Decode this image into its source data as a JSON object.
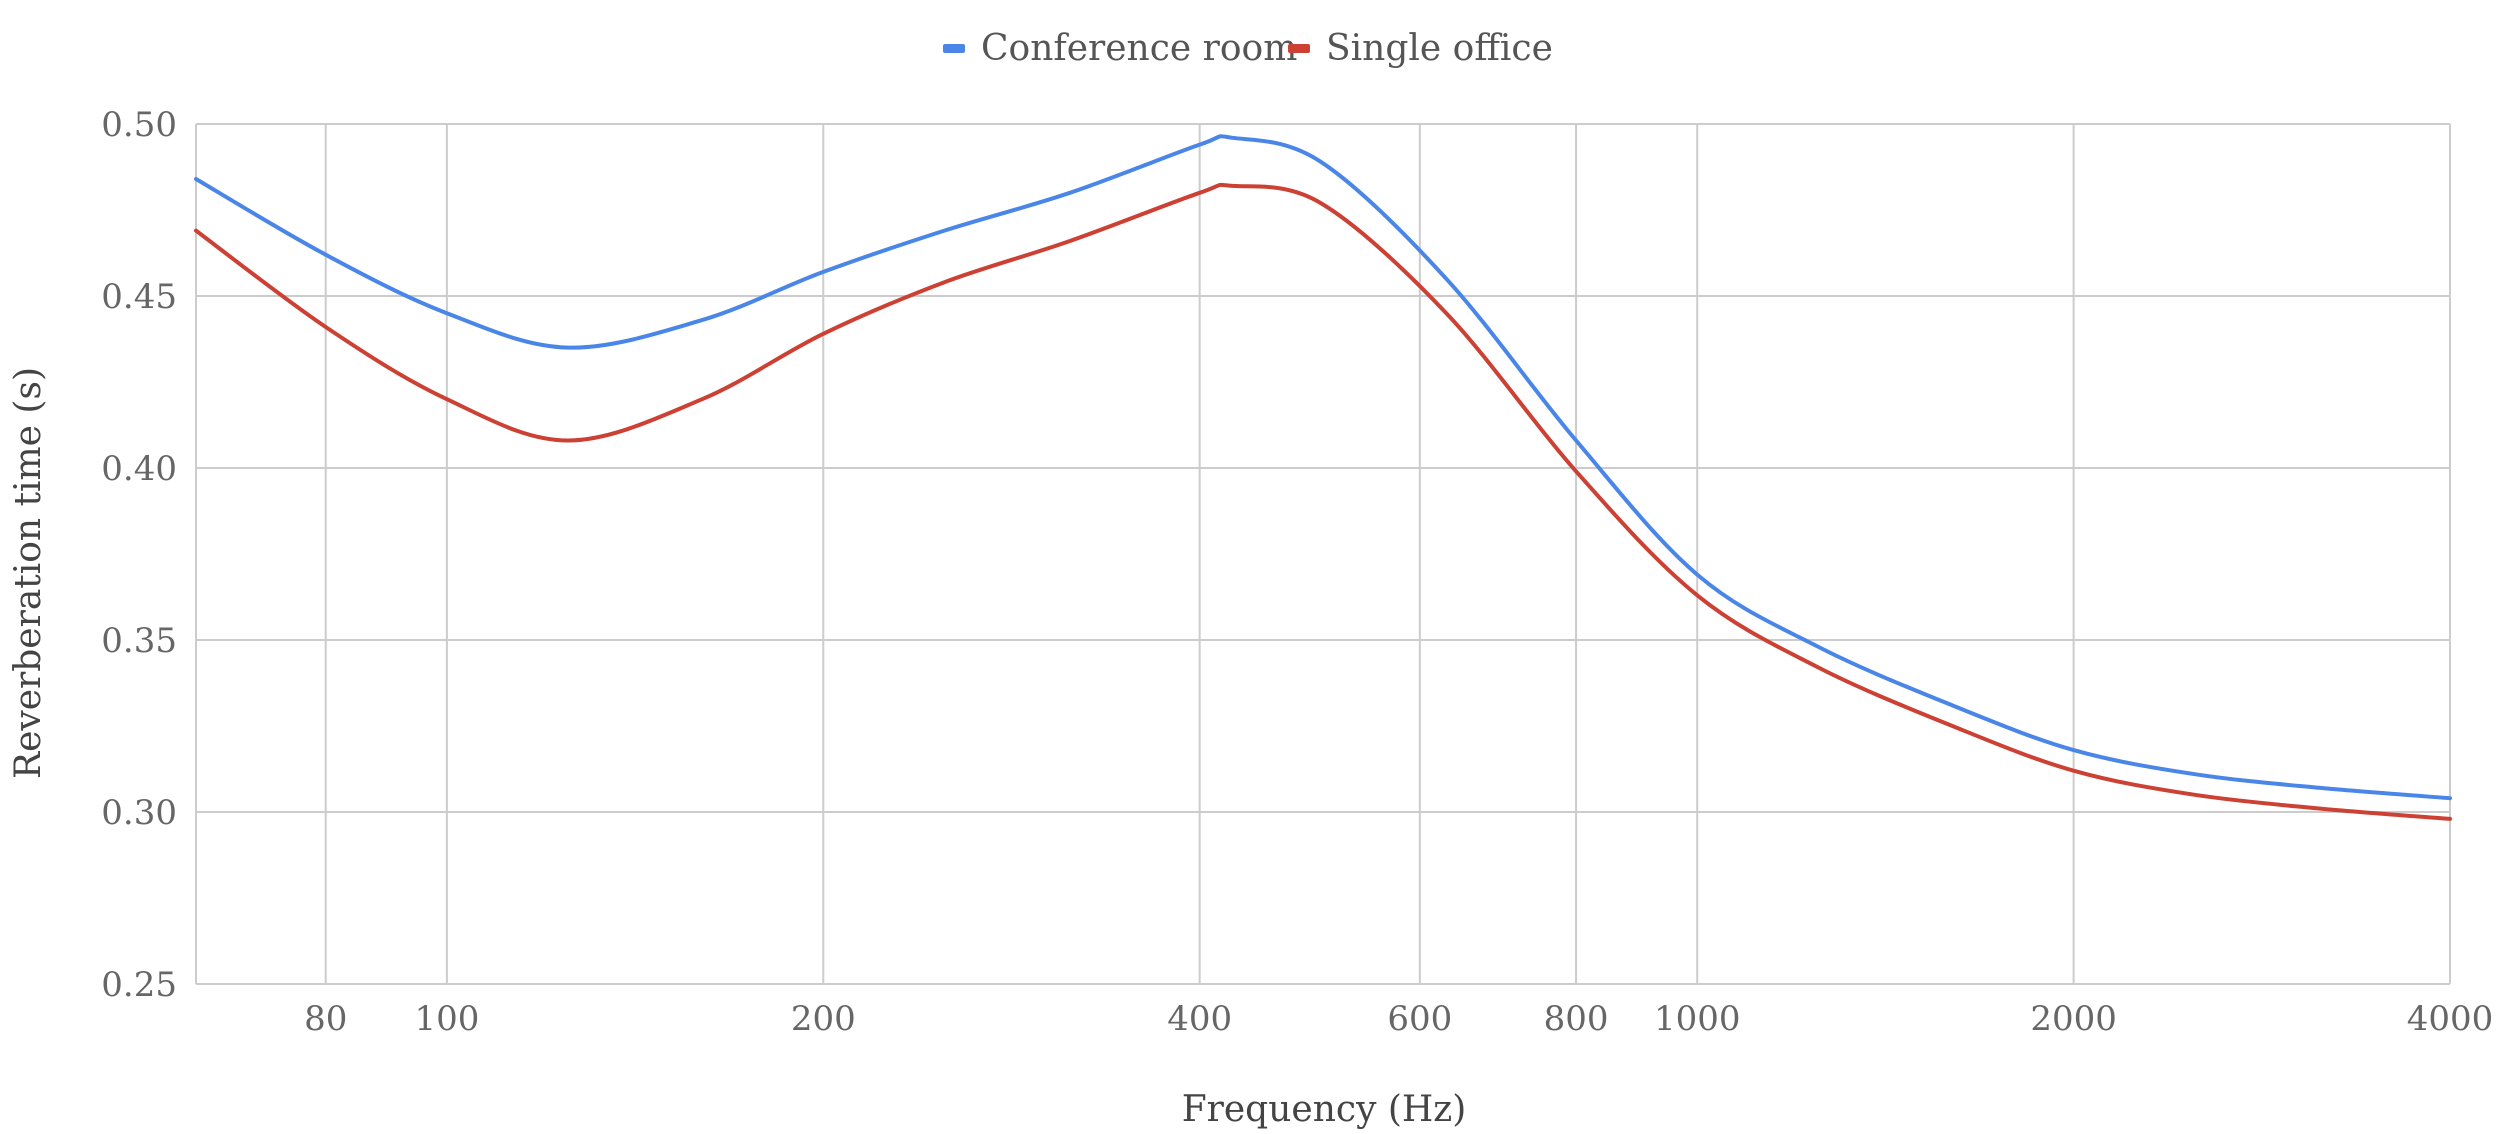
{
  "chart_data": {
    "type": "line",
    "xlabel": "Frequency (Hz)",
    "ylabel": "Reverberation time (s)",
    "x_scale": "log",
    "xlim": [
      63,
      4000
    ],
    "ylim": [
      0.25,
      0.5
    ],
    "x_ticks": [
      80,
      100,
      200,
      400,
      600,
      800,
      1000,
      2000,
      4000
    ],
    "y_ticks": [
      "0.25",
      "0.30",
      "0.35",
      "0.40",
      "0.45",
      "0.50"
    ],
    "grid": true,
    "legend_position": "top",
    "series": [
      {
        "name": "Conference room",
        "color": "#4a86e8",
        "x": [
          63,
          80,
          100,
          125,
          160,
          200,
          250,
          315,
          400,
          425,
          500,
          630,
          800,
          1000,
          1250,
          1600,
          2000,
          2500,
          3150,
          4000
        ],
        "y": [
          0.484,
          0.462,
          0.445,
          0.435,
          0.443,
          0.457,
          0.469,
          0.48,
          0.494,
          0.496,
          0.489,
          0.455,
          0.408,
          0.369,
          0.348,
          0.331,
          0.318,
          0.311,
          0.307,
          0.304
        ]
      },
      {
        "name": "Single office",
        "color": "#cc4133",
        "x": [
          63,
          80,
          100,
          125,
          160,
          200,
          250,
          315,
          400,
          425,
          500,
          630,
          800,
          1000,
          1250,
          1600,
          2000,
          2500,
          3150,
          4000
        ],
        "y": [
          0.469,
          0.441,
          0.42,
          0.408,
          0.42,
          0.439,
          0.454,
          0.466,
          0.48,
          0.482,
          0.477,
          0.445,
          0.399,
          0.363,
          0.342,
          0.325,
          0.312,
          0.305,
          0.301,
          0.298
        ]
      }
    ]
  }
}
